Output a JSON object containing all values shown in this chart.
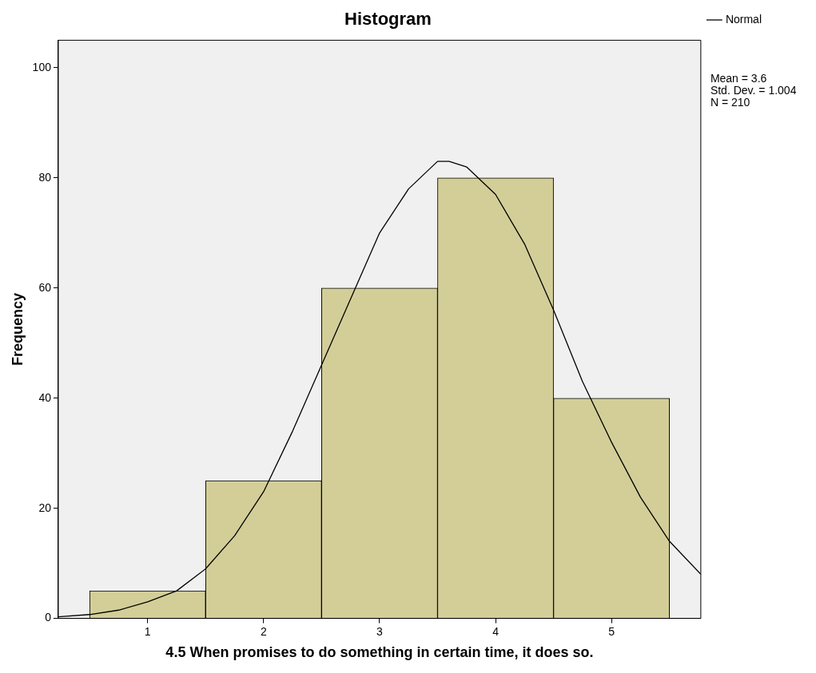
{
  "chart_data": {
    "type": "histogram",
    "title": "Histogram",
    "xlabel": "4.5 When promises to do something in certain time, it does so.",
    "ylabel": "Frequency",
    "bins": [
      0.5,
      1.5,
      2.5,
      3.5,
      4.5,
      5.5
    ],
    "values": [
      5,
      25,
      60,
      80,
      40
    ],
    "color": "#d3ce98",
    "series": [
      {
        "type": "line",
        "name": "Normal",
        "color": "#000000",
        "x": [
          0.23,
          0.5,
          0.75,
          1,
          1.25,
          1.5,
          1.75,
          2,
          2.25,
          2.5,
          2.75,
          3,
          3.25,
          3.5,
          3.6,
          3.75,
          4,
          4.25,
          4.5,
          4.75,
          5,
          5.25,
          5.5,
          5.77
        ],
        "values": [
          0.3,
          0.7,
          1.5,
          3,
          5,
          9,
          15,
          23,
          34,
          46,
          58,
          70,
          78,
          83,
          83,
          82,
          77,
          68,
          56,
          43,
          32,
          22,
          14,
          8
        ]
      }
    ],
    "xlim": [
      0.23,
      5.77
    ],
    "xticks": [
      1,
      2,
      3,
      4,
      5
    ],
    "ylim": [
      0,
      105
    ],
    "yticks": [
      0,
      20,
      40,
      60,
      80,
      100
    ],
    "grid": false,
    "legend": "top right",
    "marker": "none",
    "line_style": "solid",
    "annotations": [
      "Mean = 3.6",
      "Std. Dev. = 1.004",
      "N = 210"
    ]
  }
}
